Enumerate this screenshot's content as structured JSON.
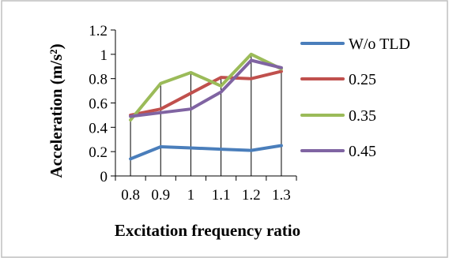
{
  "chart_data": {
    "type": "line",
    "categories": [
      "0.8",
      "0.9",
      "1",
      "1.1",
      "1.2",
      "1.3"
    ],
    "series": [
      {
        "name": "W/o TLD",
        "values": [
          0.14,
          0.24,
          0.23,
          0.22,
          0.21,
          0.25
        ],
        "color": "#4a7ebb"
      },
      {
        "name": "0.25",
        "values": [
          0.5,
          0.55,
          0.68,
          0.81,
          0.8,
          0.86
        ],
        "color": "#c0504d"
      },
      {
        "name": "0.35",
        "values": [
          0.46,
          0.76,
          0.85,
          0.74,
          1.0,
          0.88
        ],
        "color": "#9bbb59"
      },
      {
        "name": "0.45",
        "values": [
          0.49,
          0.52,
          0.55,
          0.69,
          0.95,
          0.89
        ],
        "color": "#8064a2"
      }
    ],
    "title": "",
    "xlabel": "Excitation frequency ratio",
    "ylabel": "Acceleration (m/s²)",
    "ylim": [
      0,
      1.2
    ],
    "yticks": [
      "0",
      "0.2",
      "0.4",
      "0.6",
      "0.8",
      "1",
      "1.2"
    ],
    "grid": "vertical drop lines from each category to the highest series value",
    "legend": "right"
  }
}
